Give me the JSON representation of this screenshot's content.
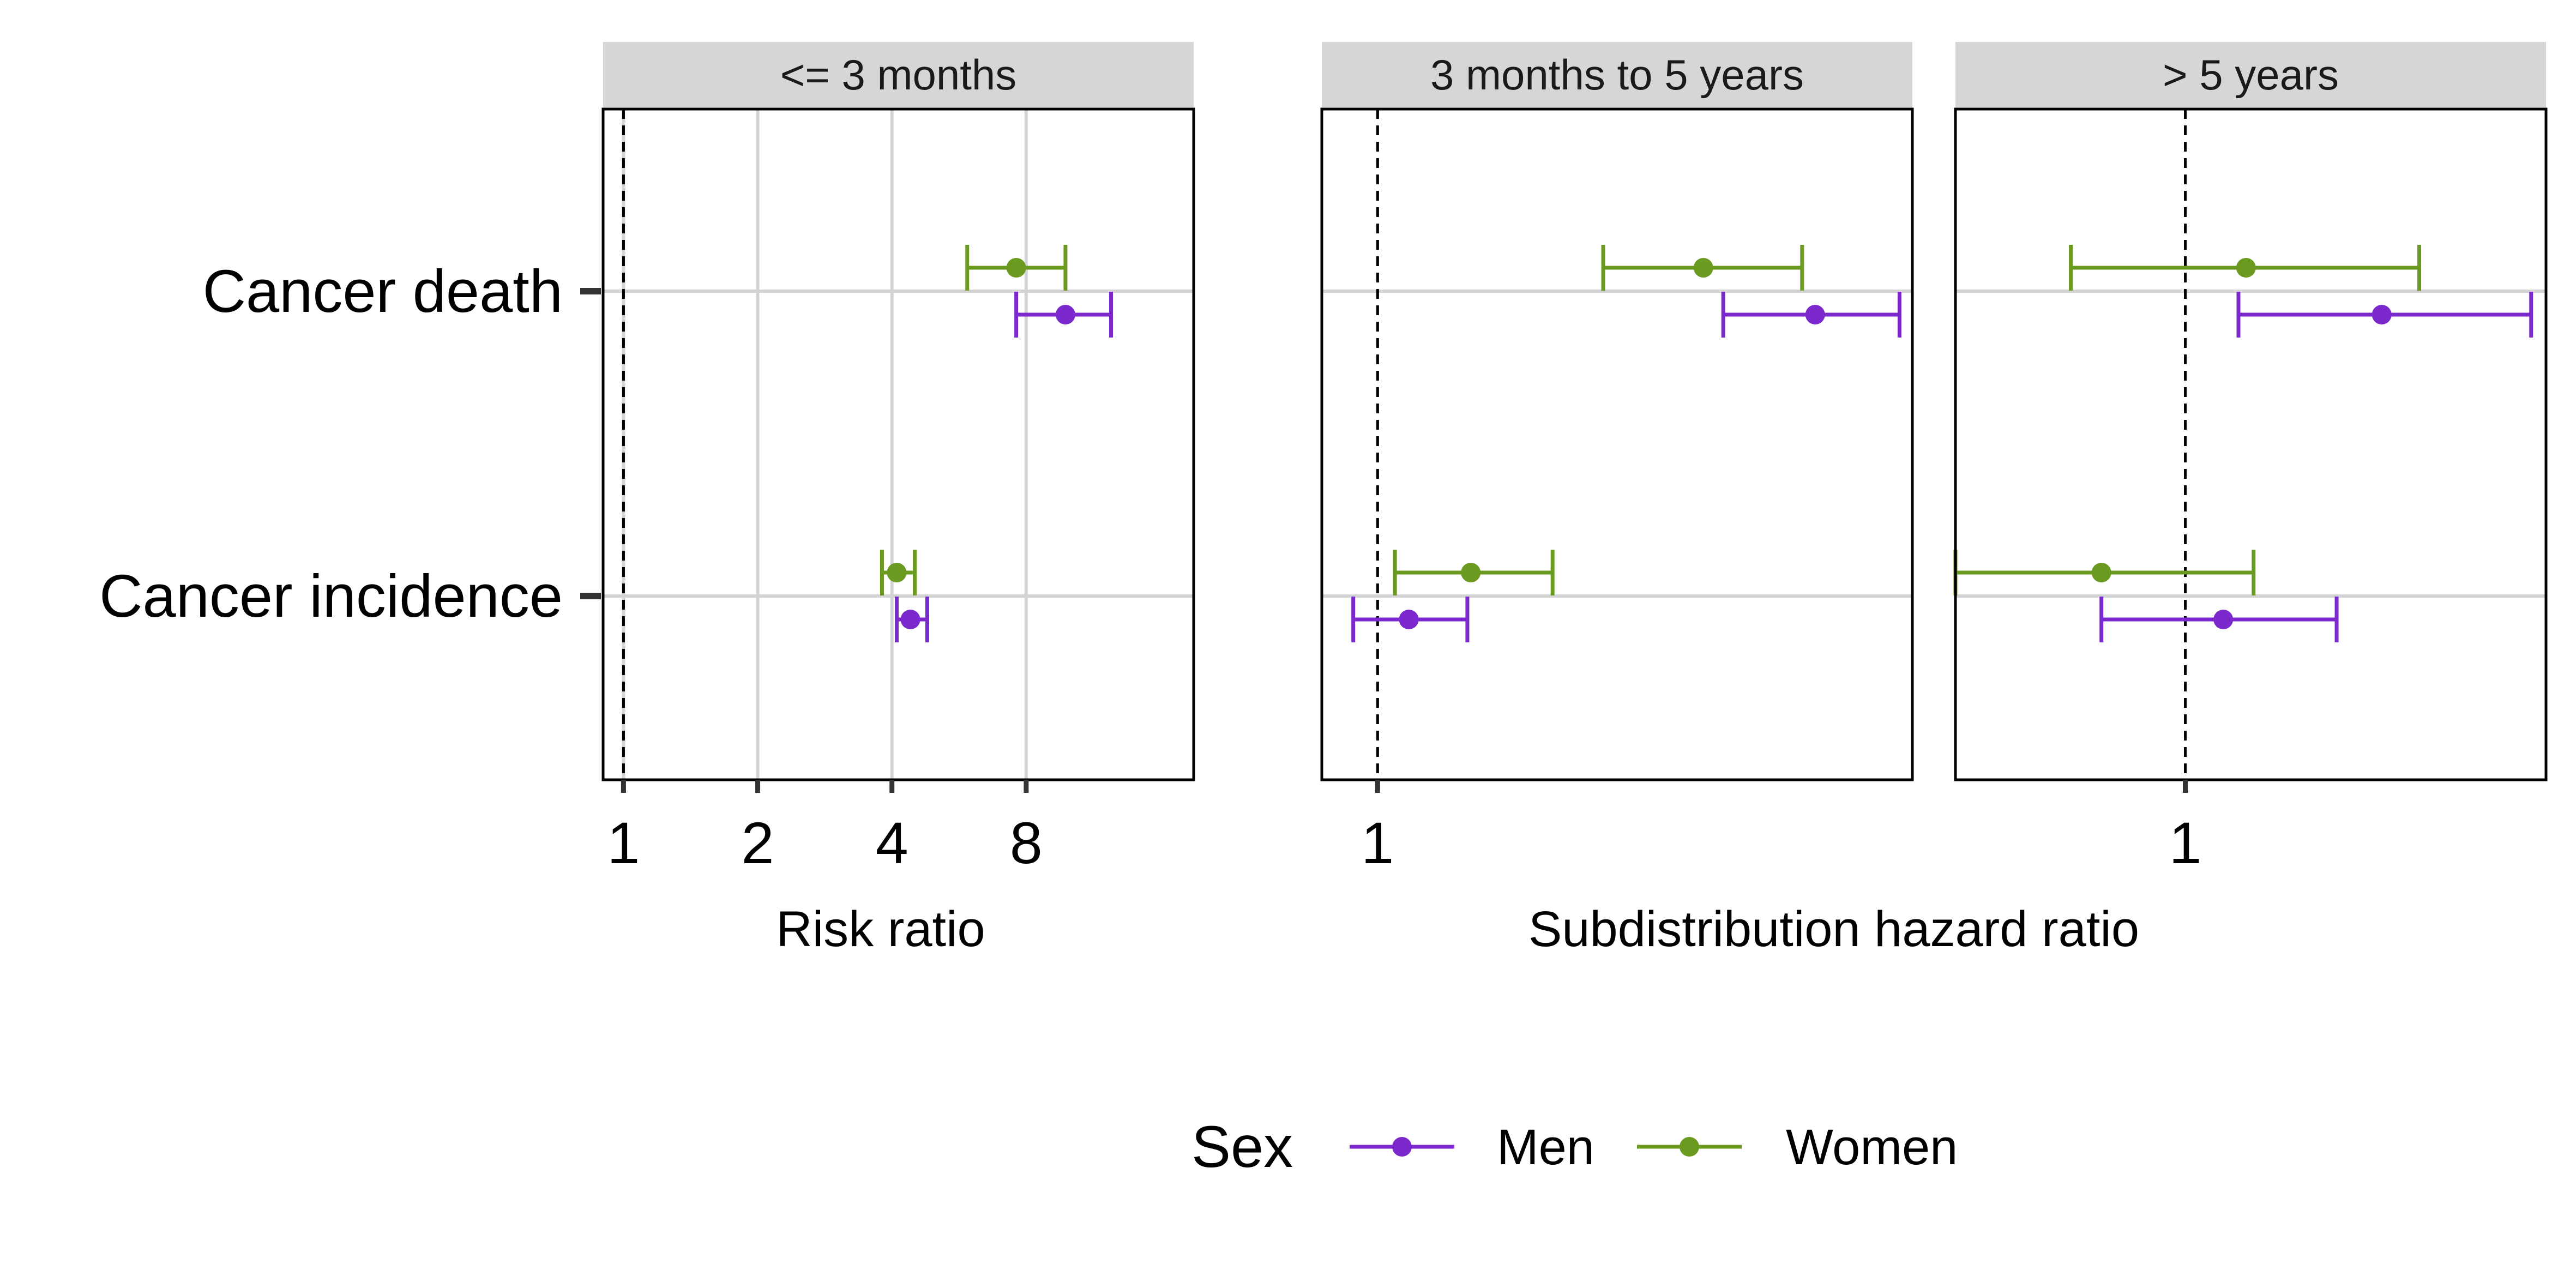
{
  "chart_data": {
    "type": "forest",
    "legend": {
      "title": "Sex",
      "position": "bottom"
    },
    "colors": {
      "Men": "#7b28cc",
      "Women": "#6a9a1f",
      "ref_line": "#000000",
      "grid": "#d3d3d3",
      "strip_bg": "#d6d6d6"
    },
    "y_categories": [
      "Cancer death",
      "Cancer incidence"
    ],
    "x_axis_titles": {
      "left": "Risk ratio",
      "right": "Subdistribution hazard ratio"
    },
    "panels": [
      {
        "strip_label": "<= 3 months",
        "scale": "log2",
        "xlim": [
          0.9,
          19
        ],
        "x_ticks": [
          1,
          2,
          4,
          8
        ],
        "x_tick_labels": [
          "1",
          "2",
          "4",
          "8"
        ],
        "reference": 1,
        "grid_x": true,
        "series": [
          {
            "name": "Men",
            "points": [
              {
                "category": "Cancer death",
                "estimate": 9.8,
                "lower": 7.6,
                "upper": 12.4
              },
              {
                "category": "Cancer incidence",
                "estimate": 4.4,
                "lower": 4.1,
                "upper": 4.8
              }
            ]
          },
          {
            "name": "Women",
            "points": [
              {
                "category": "Cancer death",
                "estimate": 7.6,
                "lower": 5.9,
                "upper": 9.8
              },
              {
                "category": "Cancer incidence",
                "estimate": 4.1,
                "lower": 3.8,
                "upper": 4.5
              }
            ]
          }
        ]
      },
      {
        "strip_label": "3 months to 5 years",
        "scale": "log",
        "xlim": [
          0.992,
          1.08
        ],
        "x_ticks": [
          1
        ],
        "x_tick_labels": [
          "1"
        ],
        "reference": 1,
        "grid_x": false,
        "series": [
          {
            "name": "Men",
            "points": [
              {
                "category": "Cancer death",
                "estimate": 1.065,
                "lower": 1.051,
                "upper": 1.078
              },
              {
                "category": "Cancer incidence",
                "estimate": 1.0045,
                "lower": 0.9965,
                "upper": 1.013
              }
            ]
          },
          {
            "name": "Women",
            "points": [
              {
                "category": "Cancer death",
                "estimate": 1.048,
                "lower": 1.033,
                "upper": 1.063
              },
              {
                "category": "Cancer incidence",
                "estimate": 1.0135,
                "lower": 1.0025,
                "upper": 1.0255
              }
            ]
          }
        ]
      },
      {
        "strip_label": "> 5 years",
        "scale": "log",
        "xlim": [
          0.985,
          1.024
        ],
        "x_ticks": [
          1
        ],
        "x_tick_labels": [
          "1"
        ],
        "reference": 1,
        "grid_x": false,
        "series": [
          {
            "name": "Men",
            "points": [
              {
                "category": "Cancer death",
                "estimate": 1.013,
                "lower": 1.0035,
                "upper": 1.023
              },
              {
                "category": "Cancer incidence",
                "estimate": 1.0025,
                "lower": 0.9945,
                "upper": 1.01
              }
            ]
          },
          {
            "name": "Women",
            "points": [
              {
                "category": "Cancer death",
                "estimate": 1.004,
                "lower": 0.9925,
                "upper": 1.0155
              },
              {
                "category": "Cancer incidence",
                "estimate": 0.9945,
                "lower": 0.985,
                "upper": 1.0045
              }
            ]
          }
        ]
      }
    ]
  }
}
